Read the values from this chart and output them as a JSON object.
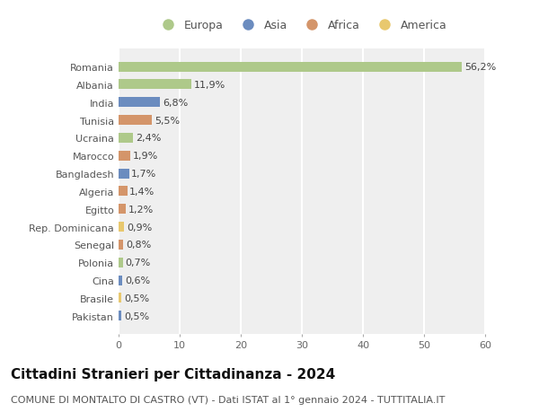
{
  "categories": [
    "Romania",
    "Albania",
    "India",
    "Tunisia",
    "Ucraina",
    "Marocco",
    "Bangladesh",
    "Algeria",
    "Egitto",
    "Rep. Dominicana",
    "Senegal",
    "Polonia",
    "Cina",
    "Brasile",
    "Pakistan"
  ],
  "values": [
    56.2,
    11.9,
    6.8,
    5.5,
    2.4,
    1.9,
    1.7,
    1.4,
    1.2,
    0.9,
    0.8,
    0.7,
    0.6,
    0.5,
    0.5
  ],
  "labels": [
    "56,2%",
    "11,9%",
    "6,8%",
    "5,5%",
    "2,4%",
    "1,9%",
    "1,7%",
    "1,4%",
    "1,2%",
    "0,9%",
    "0,8%",
    "0,7%",
    "0,6%",
    "0,5%",
    "0,5%"
  ],
  "continent": [
    "Europa",
    "Europa",
    "Asia",
    "Africa",
    "Europa",
    "Africa",
    "Asia",
    "Africa",
    "Africa",
    "America",
    "Africa",
    "Europa",
    "Asia",
    "America",
    "Asia"
  ],
  "colors": {
    "Europa": "#aec98a",
    "Asia": "#6b8cbf",
    "Africa": "#d4956a",
    "America": "#e8c86e"
  },
  "legend_order": [
    "Europa",
    "Asia",
    "Africa",
    "America"
  ],
  "title": "Cittadini Stranieri per Cittadinanza - 2024",
  "subtitle": "COMUNE DI MONTALTO DI CASTRO (VT) - Dati ISTAT al 1° gennaio 2024 - TUTTITALIA.IT",
  "xlim": [
    0,
    60
  ],
  "xticks": [
    0,
    10,
    20,
    30,
    40,
    50,
    60
  ],
  "background_color": "#ffffff",
  "plot_background": "#efefef",
  "grid_color": "#ffffff",
  "title_fontsize": 11,
  "subtitle_fontsize": 8,
  "label_fontsize": 8,
  "tick_fontsize": 8,
  "legend_fontsize": 9,
  "bar_height": 0.55
}
